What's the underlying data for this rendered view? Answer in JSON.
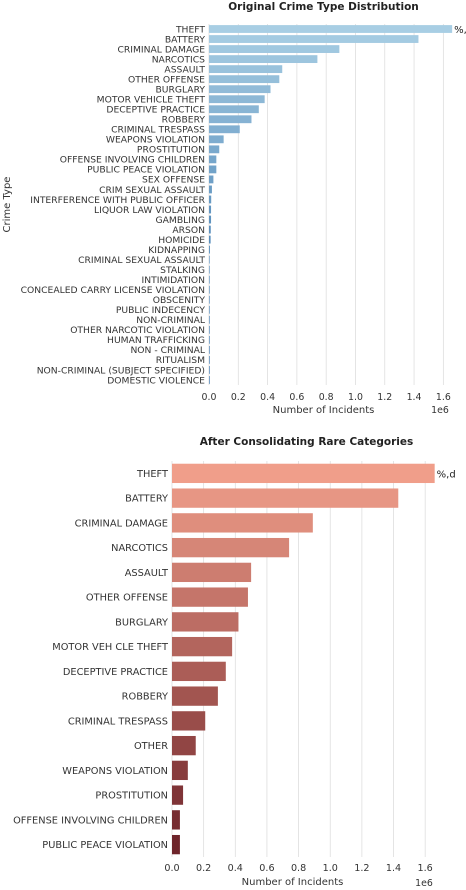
{
  "chart_data": [
    {
      "type": "bar",
      "orientation": "horizontal",
      "title": "Original Crime Type Distribution",
      "xlabel": "Number of Incidents",
      "ylabel": "Crime Type",
      "x_scale_label": "1e6",
      "xlim": [
        0,
        1.7
      ],
      "xticks": [
        "0.0",
        "0.2",
        "0.4",
        "0.6",
        "0.8",
        "1.0",
        "1.2",
        "1.4",
        "1.6"
      ],
      "grid": true,
      "palette": "blues",
      "annotation": "%,d",
      "categories": [
        "THEFT",
        "BATTERY",
        "CRIMINAL DAMAGE",
        "NARCOTICS",
        "ASSAULT",
        "OTHER OFFENSE",
        "BURGLARY",
        "MOTOR VEHICLE THEFT",
        "DECEPTIVE PRACTICE",
        "ROBBERY",
        "CRIMINAL TRESPASS",
        "WEAPONS VIOLATION",
        "PROSTITUTION",
        "OFFENSE INVOLVING CHILDREN",
        "PUBLIC PEACE VIOLATION",
        "SEX OFFENSE",
        "CRIM SEXUAL ASSAULT",
        "INTERFERENCE WITH PUBLIC OFFICER",
        "LIQUOR LAW VIOLATION",
        "GAMBLING",
        "ARSON",
        "HOMICIDE",
        "KIDNAPPING",
        "CRIMINAL SEXUAL ASSAULT",
        "STALKING",
        "INTIMIDATION",
        "CONCEALED CARRY LICENSE VIOLATION",
        "OBSCENITY",
        "PUBLIC INDECENCY",
        "NON-CRIMINAL",
        "OTHER NARCOTIC VIOLATION",
        "HUMAN TRAFFICKING",
        "NON - CRIMINAL",
        "RITUALISM",
        "NON-CRIMINAL (SUBJECT SPECIFIED)",
        "DOMESTIC VIOLENCE"
      ],
      "values": [
        1.66,
        1.43,
        0.89,
        0.74,
        0.5,
        0.48,
        0.42,
        0.38,
        0.34,
        0.29,
        0.21,
        0.1,
        0.07,
        0.05,
        0.05,
        0.03,
        0.02,
        0.015,
        0.014,
        0.014,
        0.012,
        0.011,
        0.006,
        0.004,
        0.003,
        0.003,
        0.002,
        0.001,
        0.001,
        0.001,
        0.0005,
        0.0005,
        0.0003,
        0.0002,
        0.0001,
        0.0001
      ]
    },
    {
      "type": "bar",
      "orientation": "horizontal",
      "title": "After Consolidating Rare Categories",
      "xlabel": "Number of Incidents",
      "ylabel": "",
      "x_scale_label": "1e6",
      "xlim": [
        0,
        1.7
      ],
      "xticks": [
        "0.0",
        "0.2",
        "0.4",
        "0.6",
        "0.8",
        "1.0",
        "1.2",
        "1.4",
        "1.6"
      ],
      "grid": true,
      "palette": "reds",
      "annotation": "%,d",
      "categories": [
        "THEFT",
        "BATTERY",
        "CRIMINAL DAMAGE",
        "NARCOTICS",
        "ASSAULT",
        "OTHER OFFENSE",
        "BURGLARY",
        "MOTOR VEH CLE THEFT",
        "DECEPTIVE PRACTICE",
        "ROBBERY",
        "CRIMINAL TRESPASS",
        "OTHER",
        "WEAPONS VIOLATION",
        "PROSTITUTION",
        "OFFENSE INVOLVING CHILDREN",
        "PUBLIC PEACE VIOLATION"
      ],
      "values": [
        1.66,
        1.43,
        0.89,
        0.74,
        0.5,
        0.48,
        0.42,
        0.38,
        0.34,
        0.29,
        0.21,
        0.15,
        0.1,
        0.07,
        0.05,
        0.05
      ]
    }
  ]
}
